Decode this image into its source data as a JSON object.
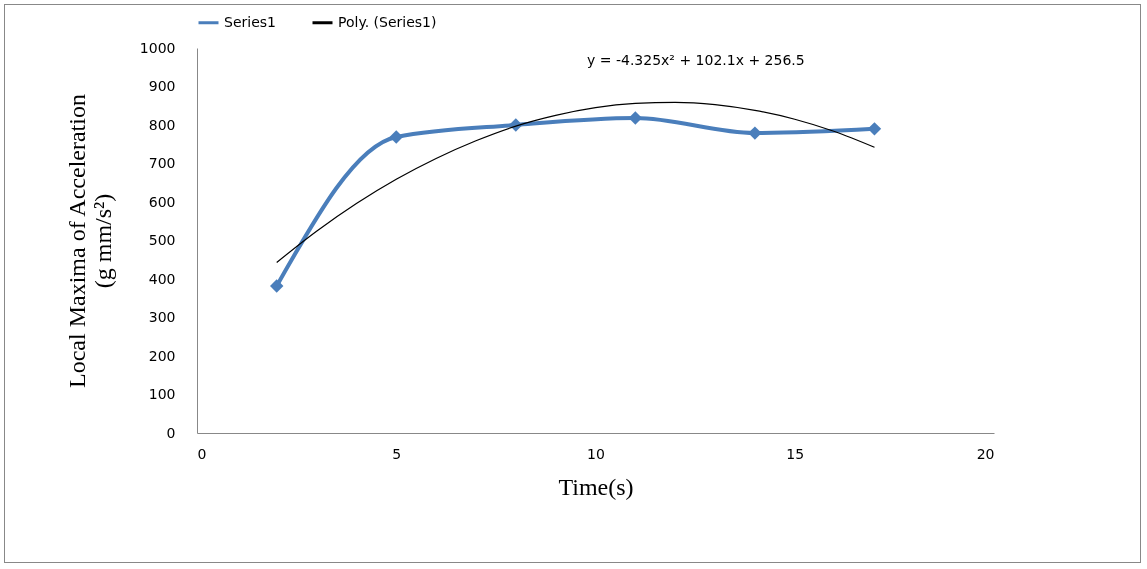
{
  "chart_data": {
    "type": "line",
    "xlabel": "Time(s)",
    "ylabel": "Local Maxima of Acceleration (g mm/s²)",
    "xlim": [
      0,
      20
    ],
    "xticks": [
      0,
      5,
      10,
      15,
      20
    ],
    "ylim": [
      0,
      1000
    ],
    "yticks": [
      0,
      100,
      200,
      300,
      400,
      500,
      600,
      700,
      800,
      900,
      1000
    ],
    "grid": false,
    "legend": "top",
    "annotations": [
      "y = -4.325x² + 102.1x + 256.5"
    ],
    "series": [
      {
        "name": "Series1",
        "color": "#4a7ebb",
        "marker": "diamond",
        "x": [
          2,
          5,
          8,
          11,
          14,
          17
        ],
        "values": [
          382,
          769,
          800,
          818,
          779,
          790
        ]
      },
      {
        "name": "Poly. (Series1)",
        "color": "#000000",
        "marker": "none",
        "x": [
          2,
          3,
          4,
          5,
          6,
          7,
          8,
          9,
          10,
          11,
          12,
          13,
          14,
          15,
          16,
          17
        ],
        "values": [
          443,
          524,
          596,
          659,
          713,
          759,
          797,
          825,
          845,
          856,
          859,
          853,
          838,
          815,
          783,
          742
        ]
      }
    ]
  }
}
